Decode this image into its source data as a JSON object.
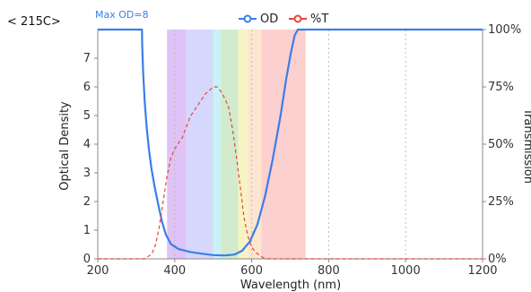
{
  "corner_label": "< 215C>",
  "chart_data": {
    "type": "line",
    "annotation": "Max OD=8",
    "xlabel": "Wavelength (nm)",
    "ylabel": "Optical Density",
    "y2label": "Transmission",
    "xlim": [
      200,
      1200
    ],
    "ylim": [
      0,
      8
    ],
    "y2lim": [
      0,
      100
    ],
    "x_ticks": [
      200,
      400,
      600,
      800,
      1000,
      1200
    ],
    "y_ticks": [
      0,
      1,
      2,
      3,
      4,
      5,
      6,
      7
    ],
    "y2_ticks": [
      "0%",
      "25%",
      "50%",
      "75%",
      "100%"
    ],
    "y2_tick_values": [
      0,
      25,
      50,
      75,
      100
    ],
    "vertical_gridlines_dashed": [
      400,
      600,
      800,
      1000
    ],
    "legend_position": "top-center",
    "colors": {
      "od": "#3a7ee8",
      "transmission": "#e8453c",
      "axis": "#888888",
      "grid": "#bbbbbb"
    },
    "color_bands": [
      {
        "x0": 380,
        "x1": 430,
        "color": "#d9b8f5"
      },
      {
        "x0": 430,
        "x1": 500,
        "color": "#cfd0fb"
      },
      {
        "x0": 500,
        "x1": 520,
        "color": "#bff0f5"
      },
      {
        "x0": 520,
        "x1": 565,
        "color": "#c9e8c3"
      },
      {
        "x0": 565,
        "x1": 590,
        "color": "#f5f2b8"
      },
      {
        "x0": 590,
        "x1": 625,
        "color": "#fbe2c8"
      },
      {
        "x0": 625,
        "x1": 740,
        "color": "#fdc8c8"
      }
    ],
    "series": [
      {
        "name": "OD",
        "axis": "left",
        "style": "solid",
        "x": [
          200,
          315,
          315.5,
          318,
          322,
          327,
          333,
          340,
          348,
          357,
          367,
          377,
          390,
          410,
          440,
          470,
          500,
          530,
          555,
          575,
          595,
          615,
          635,
          655,
          675,
          690,
          702,
          712,
          720,
          1200
        ],
        "y": [
          8,
          8,
          7.5,
          6.5,
          5.5,
          4.6,
          3.8,
          3.1,
          2.5,
          1.9,
          1.3,
          0.85,
          0.52,
          0.34,
          0.24,
          0.18,
          0.13,
          0.12,
          0.15,
          0.28,
          0.6,
          1.2,
          2.2,
          3.5,
          5.0,
          6.3,
          7.2,
          7.8,
          8,
          8
        ]
      },
      {
        "name": "%T",
        "axis": "right",
        "style": "dashed",
        "x": [
          200,
          320,
          340,
          350,
          360,
          370,
          380,
          390,
          400,
          420,
          440,
          460,
          480,
          500,
          510,
          520,
          530,
          540,
          550,
          560,
          570,
          580,
          590,
          600,
          610,
          620,
          630,
          640,
          1200
        ],
        "y": [
          0,
          0,
          2,
          6,
          14,
          25,
          36,
          44,
          48,
          53,
          62,
          67,
          72,
          75,
          75,
          73,
          70,
          66,
          57,
          45,
          32,
          18,
          10,
          5,
          3,
          1.5,
          0.5,
          0,
          0
        ]
      }
    ]
  }
}
